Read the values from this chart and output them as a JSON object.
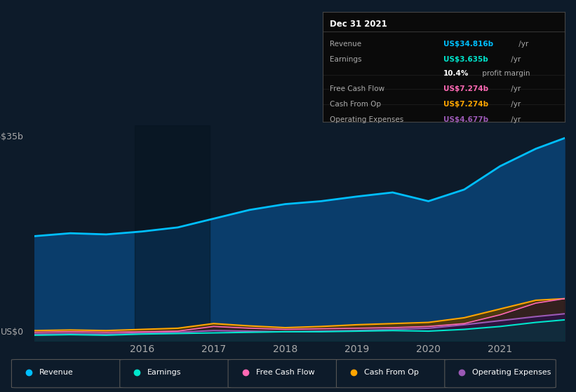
{
  "background_color": "#0d1b2a",
  "plot_bg_color": "#0d1b2a",
  "title": "Dec 31 2021",
  "ylabel_top": "US$35b",
  "ylabel_bottom": "US$0",
  "x_labels": [
    "2016",
    "2017",
    "2018",
    "2019",
    "2020",
    "2021"
  ],
  "years": [
    2014.5,
    2015.0,
    2015.5,
    2016.0,
    2016.5,
    2017.0,
    2017.5,
    2018.0,
    2018.5,
    2019.0,
    2019.5,
    2020.0,
    2020.5,
    2021.0,
    2021.5,
    2021.9
  ],
  "revenue": [
    18.0,
    18.5,
    18.3,
    18.8,
    19.5,
    21.0,
    22.5,
    23.5,
    24.0,
    24.8,
    25.5,
    24.0,
    26.0,
    30.0,
    33.0,
    34.816
  ],
  "earnings": [
    1.0,
    1.1,
    1.0,
    1.2,
    1.3,
    1.4,
    1.5,
    1.6,
    1.6,
    1.7,
    1.8,
    1.7,
    2.0,
    2.5,
    3.2,
    3.635
  ],
  "free_cash_flow": [
    1.5,
    1.6,
    1.5,
    1.6,
    1.7,
    2.5,
    2.2,
    2.0,
    2.1,
    2.2,
    2.3,
    2.5,
    3.0,
    4.5,
    6.5,
    7.274
  ],
  "cash_from_op": [
    1.8,
    1.9,
    1.8,
    2.0,
    2.2,
    3.0,
    2.6,
    2.3,
    2.5,
    2.8,
    3.0,
    3.2,
    4.0,
    5.5,
    7.0,
    7.274
  ],
  "op_expenses": [
    1.2,
    1.3,
    1.2,
    1.4,
    1.5,
    1.8,
    1.7,
    1.6,
    1.7,
    1.8,
    2.0,
    2.2,
    2.8,
    3.5,
    4.2,
    4.677
  ],
  "revenue_color": "#00bfff",
  "earnings_color": "#00e5cc",
  "free_cash_flow_color": "#ff69b4",
  "cash_from_op_color": "#ffa500",
  "op_expenses_color": "#9b59b6",
  "grid_color": "#1e3a5f",
  "text_color": "#aaaaaa",
  "highlight_color_revenue": "#00bfff",
  "highlight_color_earnings": "#00e5cc",
  "highlight_color_fcf": "#ff69b4",
  "highlight_color_cashop": "#ffa500",
  "highlight_color_opex": "#9b59b6",
  "tooltip_rows": [
    {
      "label": "Revenue",
      "value": "US$34.816b",
      "suffix": " /yr",
      "color": "#00bfff",
      "divider": false
    },
    {
      "label": "Earnings",
      "value": "US$3.635b",
      "suffix": " /yr",
      "color": "#00e5cc",
      "divider": false
    },
    {
      "label": "",
      "value": "10.4%",
      "suffix": " profit margin",
      "color": "white",
      "divider": false
    },
    {
      "label": "Free Cash Flow",
      "value": "US$7.274b",
      "suffix": " /yr",
      "color": "#ff69b4",
      "divider": true
    },
    {
      "label": "Cash From Op",
      "value": "US$7.274b",
      "suffix": " /yr",
      "color": "#ffa500",
      "divider": true
    },
    {
      "label": "Operating Expenses",
      "value": "US$4.677b",
      "suffix": " /yr",
      "color": "#9b59b6",
      "divider": true
    }
  ],
  "legend_items": [
    {
      "label": "Revenue",
      "color": "#00bfff"
    },
    {
      "label": "Earnings",
      "color": "#00e5cc"
    },
    {
      "label": "Free Cash Flow",
      "color": "#ff69b4"
    },
    {
      "label": "Cash From Op",
      "color": "#ffa500"
    },
    {
      "label": "Operating Expenses",
      "color": "#9b59b6"
    }
  ]
}
